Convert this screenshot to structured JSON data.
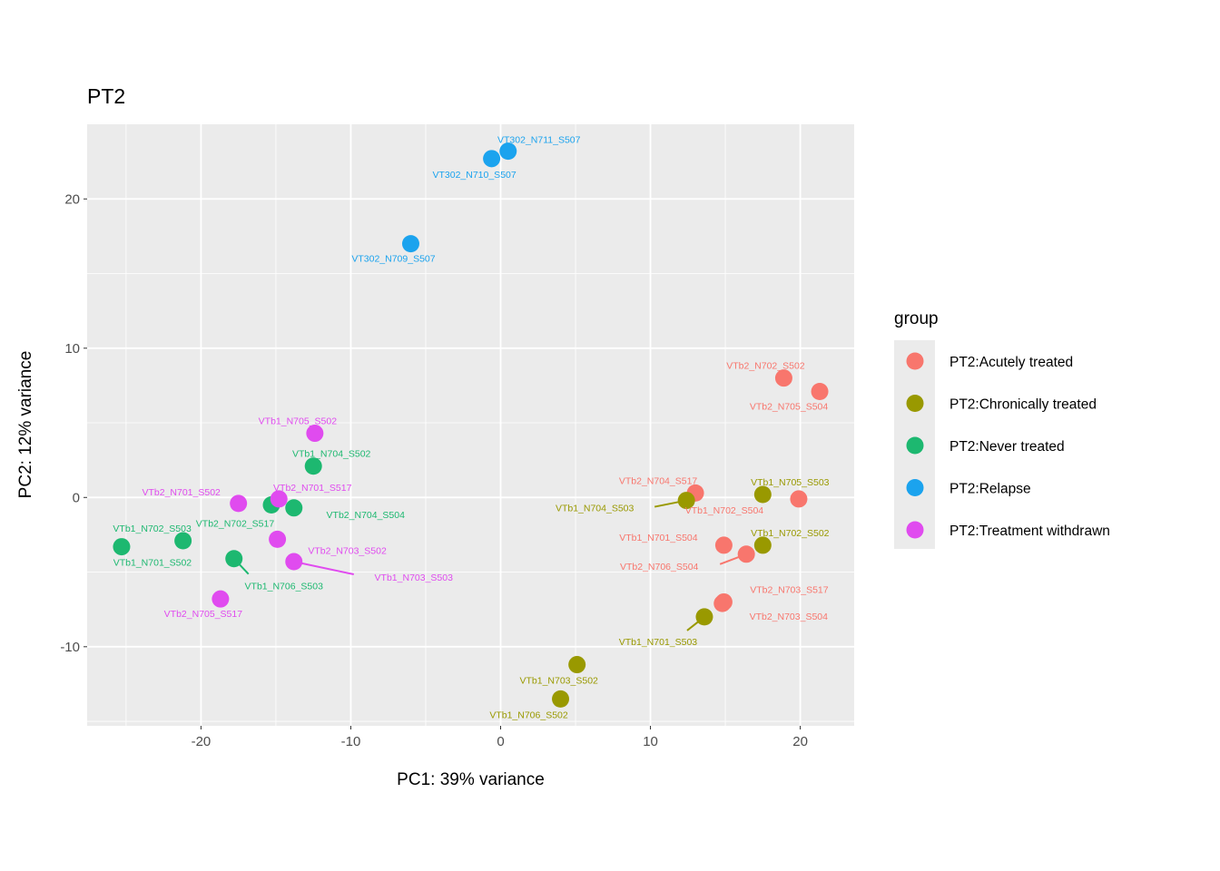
{
  "chart_data": {
    "type": "scatter",
    "title": "PT2",
    "xlabel": "PC1: 39% variance",
    "ylabel": "PC2: 12% variance",
    "xlim": [
      -27.6,
      23.6
    ],
    "ylim": [
      -15.3,
      25.0
    ],
    "xticks": [
      -20,
      -10,
      0,
      10,
      20
    ],
    "yticks": [
      -10,
      0,
      10,
      20
    ],
    "grid": true,
    "legend_title": "group",
    "legend_position": "right",
    "groups": [
      {
        "name": "PT2:Acutely treated",
        "color": "#F8766D"
      },
      {
        "name": "PT2:Chronically treated",
        "color": "#999900"
      },
      {
        "name": "PT2:Never treated",
        "color": "#1DB870"
      },
      {
        "name": "PT2:Relapse",
        "color": "#1BA3EE"
      },
      {
        "name": "PT2:Treatment withdrawn",
        "color": "#E04BEF"
      }
    ],
    "points": [
      {
        "label": "VTb2_N702_S502",
        "group": 0,
        "x": 18.9,
        "y": 8.0
      },
      {
        "label": "VTb2_N705_S504",
        "group": 0,
        "x": 21.3,
        "y": 7.1
      },
      {
        "label": "VTb2_N704_S517",
        "group": 0,
        "x": 13.0,
        "y": 0.3
      },
      {
        "label": "VTb1_N702_S504",
        "group": 0,
        "x": 19.9,
        "y": -0.1
      },
      {
        "label": "VTb1_N701_S504",
        "group": 0,
        "x": 14.9,
        "y": -3.2
      },
      {
        "label": "VTb2_N706_S504",
        "group": 0,
        "x": 16.4,
        "y": -3.8
      },
      {
        "label": "VTb2_N703_S517",
        "group": 0,
        "x": 14.9,
        "y": -7.0
      },
      {
        "label": "VTb2_N703_S504",
        "group": 0,
        "x": 14.8,
        "y": -7.1
      },
      {
        "label": "VTb1_N704_S503",
        "group": 1,
        "x": 12.4,
        "y": -0.2
      },
      {
        "label": "VTb1_N705_S503",
        "group": 1,
        "x": 17.5,
        "y": 0.2
      },
      {
        "label": "VTb1_N702_S502",
        "group": 1,
        "x": 17.5,
        "y": -3.2
      },
      {
        "label": "VTb1_N701_S503",
        "group": 1,
        "x": 13.6,
        "y": -8.0
      },
      {
        "label": "VTb1_N703_S502",
        "group": 1,
        "x": 5.1,
        "y": -11.2
      },
      {
        "label": "VTb1_N706_S502",
        "group": 1,
        "x": 4.0,
        "y": -13.5
      },
      {
        "label": "VTb1_N704_S502",
        "group": 2,
        "x": -12.5,
        "y": 2.1
      },
      {
        "label": "VTb2_N702_S517",
        "group": 2,
        "x": -15.3,
        "y": -0.5
      },
      {
        "label": "VTb2_N704_S504",
        "group": 2,
        "x": -13.8,
        "y": -0.7
      },
      {
        "label": "VTb1_N702_S503",
        "group": 2,
        "x": -21.2,
        "y": -2.9
      },
      {
        "label": "VTb1_N701_S502",
        "group": 2,
        "x": -25.3,
        "y": -3.3
      },
      {
        "label": "VTb1_N706_S503",
        "group": 2,
        "x": -17.8,
        "y": -4.1
      },
      {
        "label": "VT302_N711_S507",
        "group": 3,
        "x": 0.5,
        "y": 23.2
      },
      {
        "label": "VT302_N710_S507",
        "group": 3,
        "x": -0.6,
        "y": 22.7
      },
      {
        "label": "VT302_N709_S507",
        "group": 3,
        "x": -6.0,
        "y": 17.0
      },
      {
        "label": "VTb1_N705_S502",
        "group": 4,
        "x": -12.4,
        "y": 4.3
      },
      {
        "label": "VTb2_N701_S517",
        "group": 4,
        "x": -14.8,
        "y": -0.1
      },
      {
        "label": "VTb2_N701_S502",
        "group": 4,
        "x": -17.5,
        "y": -0.4
      },
      {
        "label": "VTb2_N703_S502",
        "group": 4,
        "x": -14.9,
        "y": -2.8
      },
      {
        "label": "VTb1_N703_S503",
        "group": 4,
        "x": -13.8,
        "y": -4.3
      },
      {
        "label": "VTb2_N705_S517",
        "group": 4,
        "x": -18.7,
        "y": -6.8
      }
    ]
  }
}
